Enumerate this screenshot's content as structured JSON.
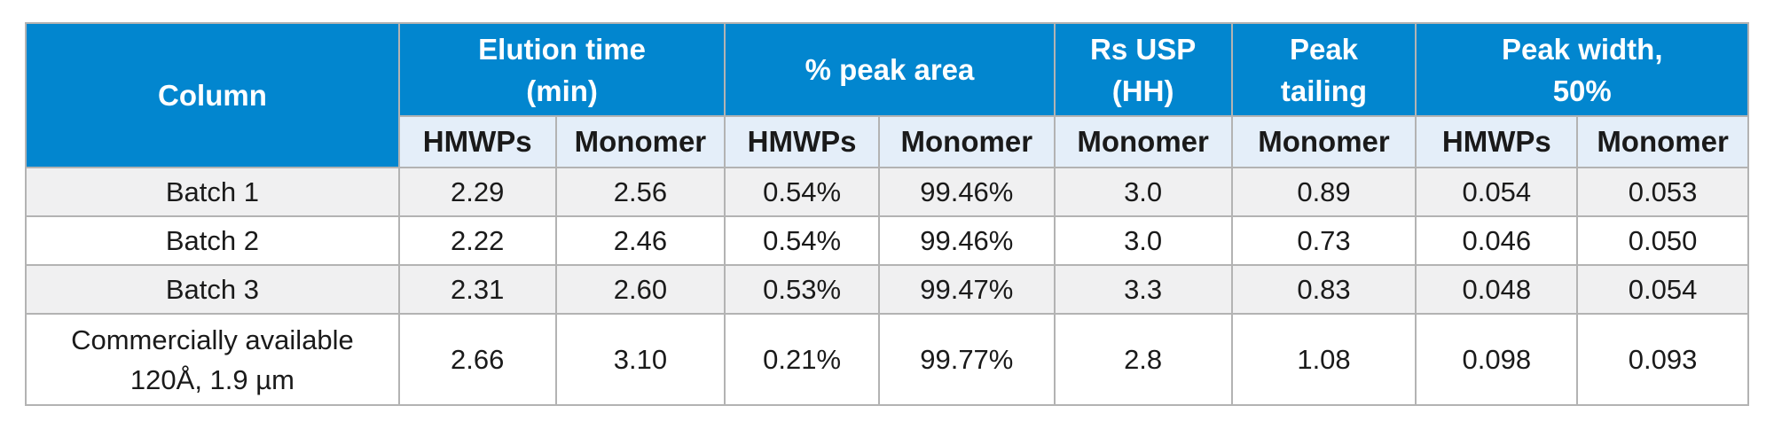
{
  "header": {
    "column": "Column",
    "groups": [
      {
        "lines": [
          "Elution time",
          "(min)"
        ]
      },
      {
        "lines": [
          "% peak area"
        ]
      },
      {
        "lines": [
          "Rs USP",
          "(HH)"
        ]
      },
      {
        "lines": [
          "Peak",
          "tailing"
        ]
      },
      {
        "lines": [
          "Peak width,",
          "50%"
        ]
      }
    ],
    "subheaders": [
      "HMWPs",
      "Monomer",
      "HMWPs",
      "Monomer",
      "Monomer",
      "Monomer",
      "HMWPs",
      "Monomer"
    ]
  },
  "rows": [
    {
      "label": [
        "Batch 1"
      ],
      "values": [
        "2.29",
        "2.56",
        "0.54%",
        "99.46%",
        "3.0",
        "0.89",
        "0.054",
        "0.053"
      ]
    },
    {
      "label": [
        "Batch 2"
      ],
      "values": [
        "2.22",
        "2.46",
        "0.54%",
        "99.46%",
        "3.0",
        "0.73",
        "0.046",
        "0.050"
      ]
    },
    {
      "label": [
        "Batch 3"
      ],
      "values": [
        "2.31",
        "2.60",
        "0.53%",
        "99.47%",
        "3.3",
        "0.83",
        "0.048",
        "0.054"
      ]
    },
    {
      "label": [
        "Commercially available",
        "120Å, 1.9 µm"
      ],
      "values": [
        "2.66",
        "3.10",
        "0.21%",
        "99.77%",
        "2.8",
        "1.08",
        "0.098",
        "0.093"
      ]
    }
  ],
  "colors": {
    "header_bg": "#0286cf",
    "subheader_bg": "#e4eef9",
    "shaded_row": "#f0f0f1",
    "border": "#b3b3b3"
  }
}
